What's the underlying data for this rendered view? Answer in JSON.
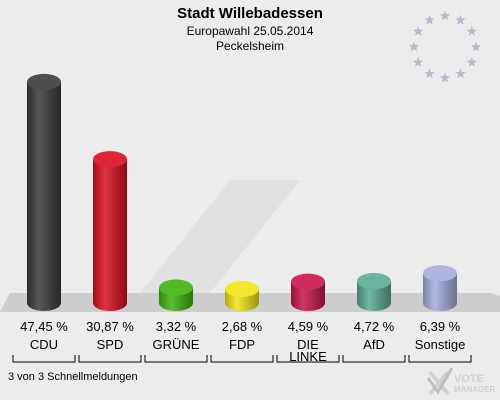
{
  "header": {
    "title": "Stadt Willebadessen",
    "subtitle": "Europawahl 25.05.2014",
    "location": "Peckelsheim"
  },
  "footer": {
    "status": "3 von 3 Schnellmeldungen"
  },
  "logo": {
    "line1": "VOTE",
    "line2": "MANAGER",
    "icon": "vote-manager-x-icon"
  },
  "eu_flag": {
    "stars": 12,
    "star_color": "#b4bccb"
  },
  "chart_data": {
    "type": "bar",
    "title": "Stadt Willebadessen",
    "subtitle": "Europawahl 25.05.2014 Peckelsheim",
    "xlabel": "",
    "ylabel": "",
    "ylim": [
      0,
      50
    ],
    "grid": false,
    "legend": "none",
    "categories": [
      "CDU",
      "SPD",
      "GRÜNE",
      "FDP",
      "DIE LINKE",
      "AfD",
      "Sonstige"
    ],
    "values": [
      47.45,
      30.87,
      3.32,
      2.68,
      4.59,
      4.72,
      6.39
    ],
    "value_labels": [
      "47,45 %",
      "30,87 %",
      "3,32 %",
      "2,68 %",
      "4,59 %",
      "4,72 %",
      "6,39 %"
    ],
    "colors": [
      "#3a3a3a",
      "#d80e1e",
      "#3cb40c",
      "#f2e415",
      "#c8154a",
      "#5aaa94",
      "#a4acdc"
    ]
  }
}
